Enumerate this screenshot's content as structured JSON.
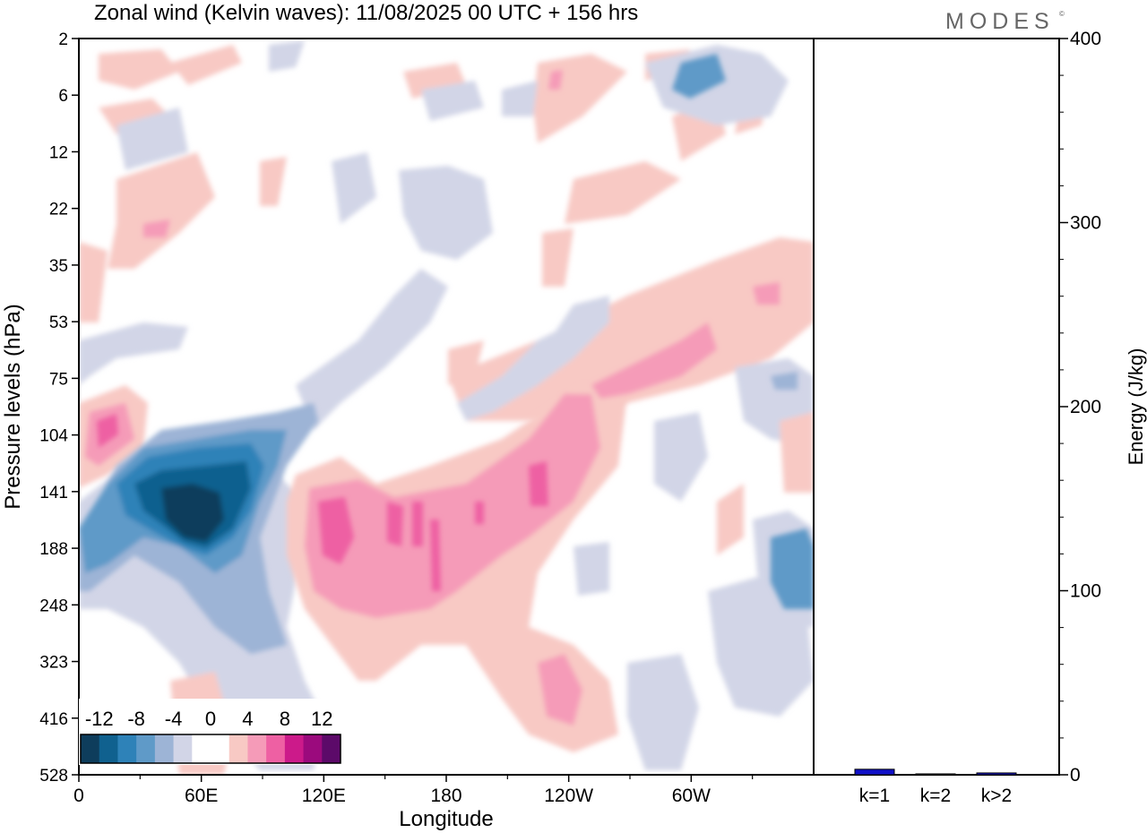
{
  "chart_data": [
    {
      "type": "heatmap",
      "title": "Zonal wind (Kelvin waves):  11/08/2025  00 UTC  + 156 hrs",
      "xlabel": "Longitude",
      "ylabel": "Pressure levels (hPa)",
      "x_ticks": [
        {
          "lon": 0,
          "label": "0"
        },
        {
          "lon": 60,
          "label": "60E"
        },
        {
          "lon": 120,
          "label": "120E"
        },
        {
          "lon": 180,
          "label": "180"
        },
        {
          "lon": 240,
          "label": "120W"
        },
        {
          "lon": 300,
          "label": "60W"
        }
      ],
      "x_minor": [
        30,
        90,
        150,
        210,
        270,
        330
      ],
      "xlim": [
        0,
        360
      ],
      "y_levels": [
        "2",
        "6",
        "12",
        "22",
        "35",
        "53",
        "75",
        "104",
        "141",
        "188",
        "248",
        "323",
        "416",
        "528"
      ],
      "colorbar": {
        "labels": [
          "-12",
          "-8",
          "-4",
          "0",
          "4",
          "8",
          "12"
        ],
        "colors": [
          "#0e3d5c",
          "#10618f",
          "#2e82b8",
          "#5f9ac8",
          "#9db4d6",
          "#d2d5e7",
          "#ffffff",
          "#ffffff",
          "#f8c9c4",
          "#f59bb8",
          "#ee60a3",
          "#cc1a8a",
          "#9b0a7d",
          "#5c0a69"
        ]
      },
      "features": [
        {
          "sign": "negative",
          "peak": -13,
          "lon": [
            25,
            95
          ],
          "hPa": [
            104,
            248
          ],
          "label_core": "strong easterly core near 141-188 hPa, 40-70E"
        },
        {
          "sign": "positive",
          "peak": 10,
          "lon": [
            105,
            250
          ],
          "hPa": [
            104,
            330
          ],
          "label_core": "westerly anomaly 120E-120W"
        },
        {
          "sign": "positive",
          "peak": 8,
          "lon": [
            0,
            30
          ],
          "hPa": [
            75,
            141
          ]
        },
        {
          "sign": "negative",
          "peak": -8,
          "lon": [
            330,
            360
          ],
          "hPa": [
            141,
            248
          ]
        },
        {
          "sign": "negative",
          "peak": -8,
          "lon": [
            290,
            340
          ],
          "hPa": [
            2,
            12
          ]
        }
      ]
    },
    {
      "type": "bar",
      "ylabel": "Energy (J/kg)",
      "categories": [
        "k=1",
        "k=2",
        "k>2"
      ],
      "values": [
        3,
        0.5,
        1
      ],
      "ylim": [
        0,
        400
      ],
      "y_ticks": [
        0,
        100,
        200,
        300,
        400
      ],
      "bar_color": "#1010c8"
    }
  ],
  "brand": {
    "logo_text": "MODES",
    "trademark": "©"
  }
}
